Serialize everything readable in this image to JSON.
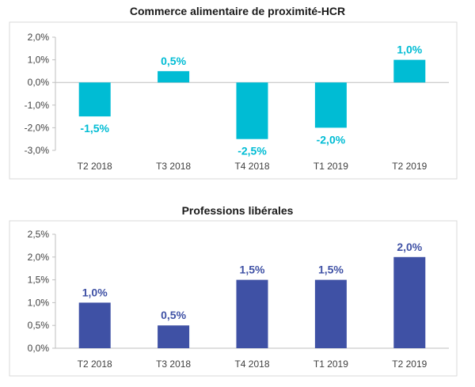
{
  "chart_data": [
    {
      "type": "bar",
      "title": "Commerce alimentaire de proximité-HCR",
      "categories": [
        "T2 2018",
        "T3 2018",
        "T4 2018",
        "T1 2019",
        "T2 2019"
      ],
      "values": [
        -1.5,
        0.5,
        -2.5,
        -2.0,
        1.0
      ],
      "data_labels": [
        "-1,5%",
        "0,5%",
        "-2,5%",
        "-2,0%",
        "1,0%"
      ],
      "ylim": [
        -3.0,
        2.0
      ],
      "yticks": [
        2.0,
        1.0,
        0.0,
        -1.0,
        -2.0,
        -3.0
      ],
      "ytick_labels": [
        "2,0%",
        "1,0%",
        "0,0%",
        "-1,0%",
        "-2,0%",
        "-3,0%"
      ],
      "bar_color": "#00BCD4",
      "label_color": "#00BCD4",
      "grid": false
    },
    {
      "type": "bar",
      "title": "Professions libérales",
      "categories": [
        "T2 2018",
        "T3 2018",
        "T4 2018",
        "T1 2019",
        "T2 2019"
      ],
      "values": [
        1.0,
        0.5,
        1.5,
        1.5,
        2.0
      ],
      "data_labels": [
        "1,0%",
        "0,5%",
        "1,5%",
        "1,5%",
        "2,0%"
      ],
      "ylim": [
        0.0,
        2.5
      ],
      "yticks": [
        2.5,
        2.0,
        1.5,
        1.0,
        0.5,
        0.0
      ],
      "ytick_labels": [
        "2,5%",
        "2,0%",
        "1,5%",
        "1,0%",
        "0,5%",
        "0,0%"
      ],
      "bar_color": "#3F51A5",
      "label_color": "#3F51A5",
      "grid": false
    }
  ]
}
